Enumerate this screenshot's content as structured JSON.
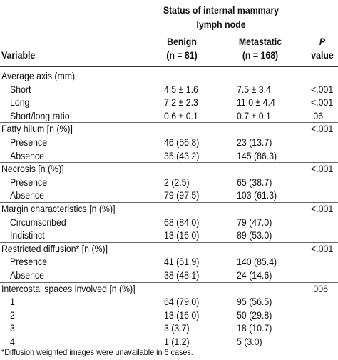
{
  "header": {
    "group_title_line1": "Status of internal mammary",
    "group_title_line2": "lymph node",
    "variable": "Variable",
    "benign_line1": "Benign",
    "benign_line2": "(n = 81)",
    "metastatic_line1": "Metastatic",
    "metastatic_line2": "(n = 168)",
    "p_line1": "P",
    "p_line2": "value"
  },
  "rows": [
    {
      "label": "Average axis (mm)",
      "level": 0,
      "benign": "",
      "metastatic": "",
      "p": ""
    },
    {
      "label": "Short",
      "level": 1,
      "benign": "4.5 ± 1.6",
      "metastatic": "7.5 ± 3.4",
      "p": "<.001"
    },
    {
      "label": "Long",
      "level": 1,
      "benign": "7.2 ± 2.3",
      "metastatic": "11.0 ± 4.4",
      "p": "<.001"
    },
    {
      "label": "Short/long ratio",
      "level": 1,
      "benign": "0.6 ± 0.1",
      "metastatic": "0.7 ± 0.1",
      "p": ".06"
    },
    {
      "label": "Fatty hilum [n (%)]",
      "level": 0,
      "benign": "",
      "metastatic": "",
      "p": "<.001"
    },
    {
      "label": "Presence",
      "level": 1,
      "benign": "46 (56.8)",
      "metastatic": "23 (13.7)",
      "p": ""
    },
    {
      "label": "Absence",
      "level": 1,
      "benign": "35 (43.2)",
      "metastatic": "145 (86.3)",
      "p": ""
    },
    {
      "label": "Necrosis [n (%)]",
      "level": 0,
      "benign": "",
      "metastatic": "",
      "p": "<.001"
    },
    {
      "label": "Presence",
      "level": 1,
      "benign": "2 (2.5)",
      "metastatic": "65 (38.7)",
      "p": ""
    },
    {
      "label": "Absence",
      "level": 1,
      "benign": "79 (97.5)",
      "metastatic": "103 (61.3)",
      "p": ""
    },
    {
      "label": "Margin characteristics [n (%)]",
      "level": 0,
      "benign": "",
      "metastatic": "",
      "p": "<.001"
    },
    {
      "label": "Circumscribed",
      "level": 1,
      "benign": "68 (84.0)",
      "metastatic": "79 (47.0)",
      "p": ""
    },
    {
      "label": "Indistinct",
      "level": 1,
      "benign": "13 (16.0)",
      "metastatic": "89 (53.0)",
      "p": ""
    },
    {
      "label": "Restricted diffusion* [n (%)]",
      "level": 0,
      "benign": "",
      "metastatic": "",
      "p": "<.001"
    },
    {
      "label": "Presence",
      "level": 1,
      "benign": "41 (51.9)",
      "metastatic": "140 (85.4)",
      "p": ""
    },
    {
      "label": "Absence",
      "level": 1,
      "benign": "38 (48.1)",
      "metastatic": "24 (14.6)",
      "p": ""
    },
    {
      "label": "Intercostal spaces involved [n (%)]",
      "level": 0,
      "benign": "",
      "metastatic": "",
      "p": ".006"
    },
    {
      "label": "1",
      "level": 1,
      "benign": "64 (79.0)",
      "metastatic": "95 (56.5)",
      "p": ""
    },
    {
      "label": "2",
      "level": 1,
      "benign": "13 (16.0)",
      "metastatic": "50 (29.8)",
      "p": ""
    },
    {
      "label": "3",
      "level": 1,
      "benign": "3 (3.7)",
      "metastatic": "18 (10.7)",
      "p": ""
    },
    {
      "label": "4",
      "level": 1,
      "benign": "1 (1.2)",
      "metastatic": "5 (3.0)",
      "p": ""
    }
  ],
  "footnote": "*Diffusion weighted images were unavailable in 6 cases."
}
